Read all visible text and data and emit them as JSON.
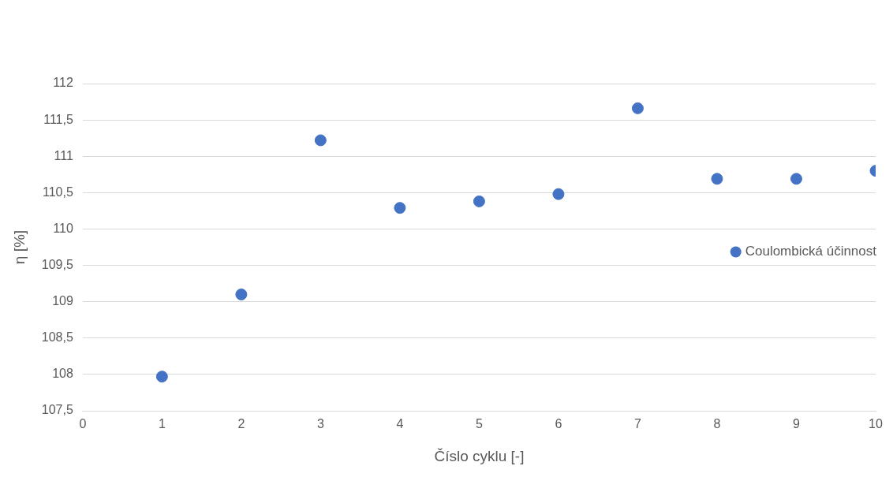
{
  "chart_data": {
    "type": "scatter",
    "xlabel": "Číslo cyklu [-]",
    "ylabel": "η [%]",
    "x": [
      1,
      2,
      3,
      4,
      5,
      6,
      7,
      8,
      9,
      10
    ],
    "series": [
      {
        "name": "Coulombická účinnost",
        "color": "#4472c4",
        "values": [
          107.97,
          109.1,
          111.22,
          110.29,
          110.38,
          110.48,
          111.66,
          110.69,
          110.69,
          110.8
        ]
      }
    ],
    "xlim": [
      0,
      10
    ],
    "xticks": [
      0,
      1,
      2,
      3,
      4,
      5,
      6,
      7,
      8,
      9,
      10
    ],
    "ylim": [
      107.5,
      112
    ],
    "yticks": [
      {
        "value": 107.5,
        "label": "107,5"
      },
      108,
      {
        "value": 108.5,
        "label": "108,5"
      },
      109,
      {
        "value": 109.5,
        "label": "109,5"
      },
      110,
      {
        "value": 110.5,
        "label": "110,5"
      },
      111,
      {
        "value": 111.5,
        "label": "111,5"
      },
      112
    ],
    "grid": "y",
    "legend": "right",
    "marker": "circle"
  }
}
